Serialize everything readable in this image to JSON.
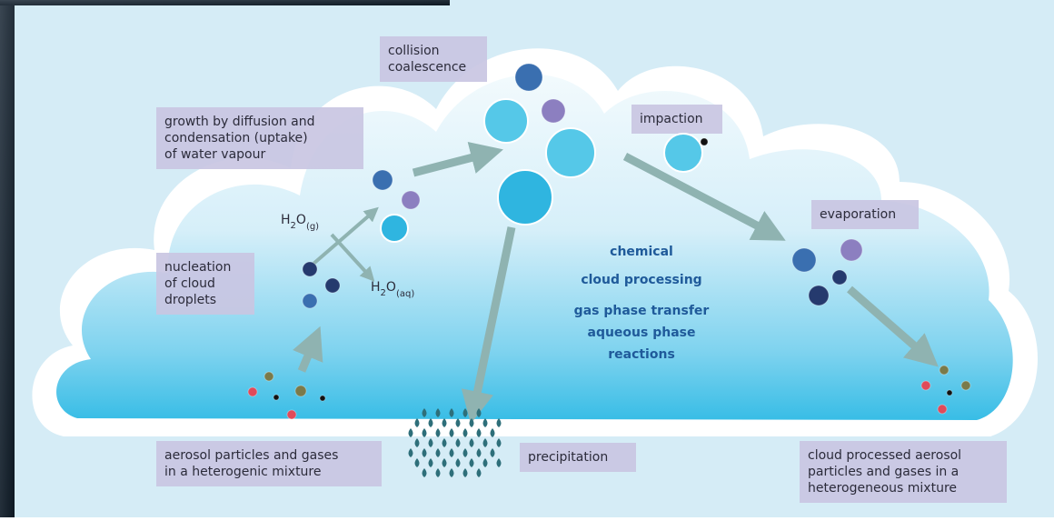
{
  "labels": {
    "collision": [
      "collision",
      "coalescence"
    ],
    "growth": [
      "growth by diffusion and",
      "condensation (uptake)",
      "of water vapour"
    ],
    "impaction": [
      "impaction"
    ],
    "evaporation": [
      "evaporation"
    ],
    "nucleation": [
      "nucleation",
      "of cloud",
      "droplets"
    ],
    "aerosol": [
      "aerosol particles and gases",
      "in a heterogenic mixture"
    ],
    "precipitation": [
      "precipitation"
    ],
    "processed": [
      "cloud processed aerosol",
      "particles and gases in a",
      "heterogeneous mixture"
    ]
  },
  "formulas": [
    {
      "element1": "H",
      "count": "2",
      "element2": "O",
      "phase": "(g)"
    },
    {
      "element1": "H",
      "count": "2",
      "element2": "O",
      "phase": "(aq)"
    }
  ],
  "center": {
    "title": [
      "chemical",
      "cloud processing"
    ],
    "subtitle": [
      "gas phase transfer",
      "aqueous phase",
      "reactions"
    ]
  }
}
